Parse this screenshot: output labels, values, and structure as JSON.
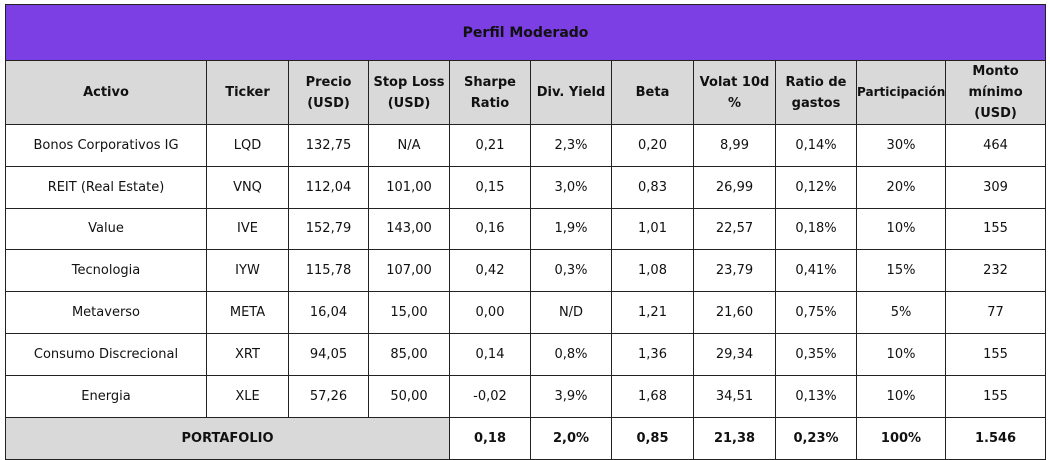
{
  "title": "Perfil Moderado",
  "headers": [
    {
      "line1": "Activo",
      "line2": ""
    },
    {
      "line1": "Ticker",
      "line2": ""
    },
    {
      "line1": "Precio",
      "line2": "(USD)"
    },
    {
      "line1": "Stop Loss",
      "line2": "(USD)"
    },
    {
      "line1": "Sharpe",
      "line2": "Ratio"
    },
    {
      "line1": "Div. Yield",
      "line2": ""
    },
    {
      "line1": "Beta",
      "line2": ""
    },
    {
      "line1": "Volat 10d",
      "line2": "%"
    },
    {
      "line1": "Ratio de",
      "line2": "gastos"
    },
    {
      "line1": "Participación",
      "line2": ""
    },
    {
      "line1": "Monto",
      "line2": "mínimo (USD)"
    }
  ],
  "rows": [
    [
      "Bonos Corporativos IG",
      "LQD",
      "132,75",
      "N/A",
      "0,21",
      "2,3%",
      "0,20",
      "8,99",
      "0,14%",
      "30%",
      "464"
    ],
    [
      "REIT (Real Estate)",
      "VNQ",
      "112,04",
      "101,00",
      "0,15",
      "3,0%",
      "0,83",
      "26,99",
      "0,12%",
      "20%",
      "309"
    ],
    [
      "Value",
      "IVE",
      "152,79",
      "143,00",
      "0,16",
      "1,9%",
      "1,01",
      "22,57",
      "0,18%",
      "10%",
      "155"
    ],
    [
      "Tecnologia",
      "IYW",
      "115,78",
      "107,00",
      "0,42",
      "0,3%",
      "1,08",
      "23,79",
      "0,41%",
      "15%",
      "232"
    ],
    [
      "Metaverso",
      "META",
      "16,04",
      "15,00",
      "0,00",
      "N/D",
      "1,21",
      "21,60",
      "0,75%",
      "5%",
      "77"
    ],
    [
      "Consumo Discrecional",
      "XRT",
      "94,05",
      "85,00",
      "0,14",
      "0,8%",
      "1,36",
      "29,34",
      "0,35%",
      "10%",
      "155"
    ],
    [
      "Energia",
      "XLE",
      "57,26",
      "50,00",
      "-0,02",
      "3,9%",
      "1,68",
      "34,51",
      "0,13%",
      "10%",
      "155"
    ]
  ],
  "total": {
    "label": "PORTAFOLIO",
    "values": [
      "0,18",
      "2,0%",
      "0,85",
      "21,38",
      "0,23%",
      "100%",
      "1.546"
    ]
  },
  "colors": {
    "title_bg": "#7b3fe4",
    "header_bg": "#d9d9d9"
  }
}
